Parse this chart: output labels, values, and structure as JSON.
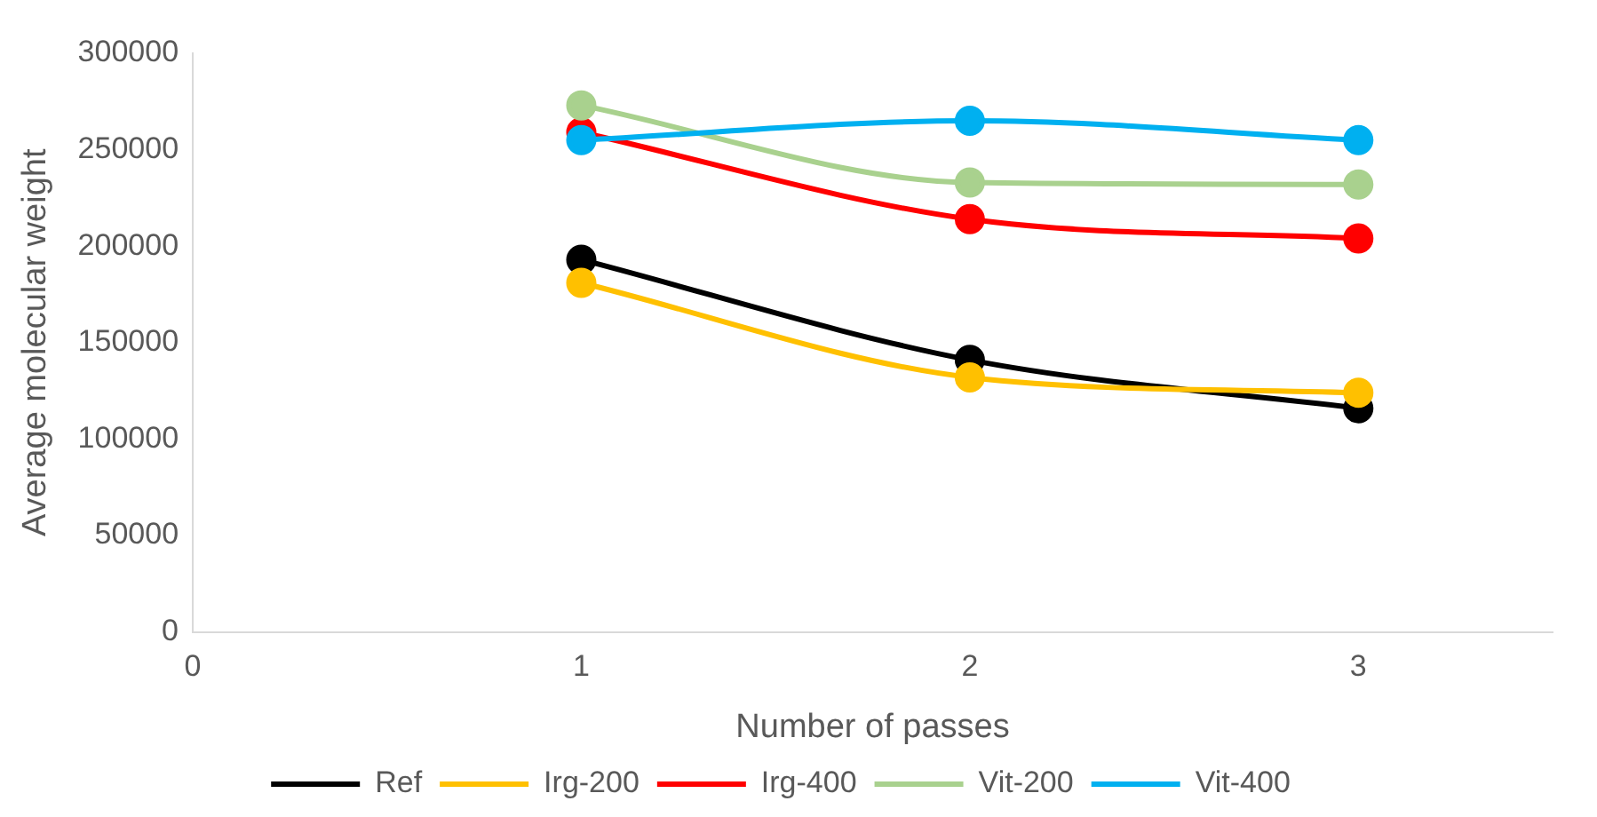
{
  "chart_data": {
    "type": "line",
    "xlabel": "Number of passes",
    "ylabel": "Average molecular weight",
    "x": [
      1,
      2,
      3
    ],
    "xlim": [
      0,
      3.5
    ],
    "xticks": [
      0,
      1,
      2,
      3
    ],
    "ylim": [
      0,
      300000
    ],
    "yticks": [
      0,
      50000,
      100000,
      150000,
      200000,
      250000,
      300000
    ],
    "grid": false,
    "legend": "bottom",
    "marker": "circle",
    "line_style": "solid",
    "series": [
      {
        "name": "Ref",
        "color": "#000000",
        "values": [
          193000,
          141000,
          116000
        ]
      },
      {
        "name": "Irg-200",
        "color": "#ffc000",
        "values": [
          181000,
          132000,
          124000
        ]
      },
      {
        "name": "Irg-400",
        "color": "#ff0000",
        "values": [
          259000,
          214000,
          204000
        ]
      },
      {
        "name": "Vit-200",
        "color": "#a9d18e",
        "values": [
          273000,
          233000,
          232000
        ]
      },
      {
        "name": "Vit-400",
        "color": "#00b0f0",
        "values": [
          255000,
          265000,
          255000
        ]
      }
    ]
  }
}
